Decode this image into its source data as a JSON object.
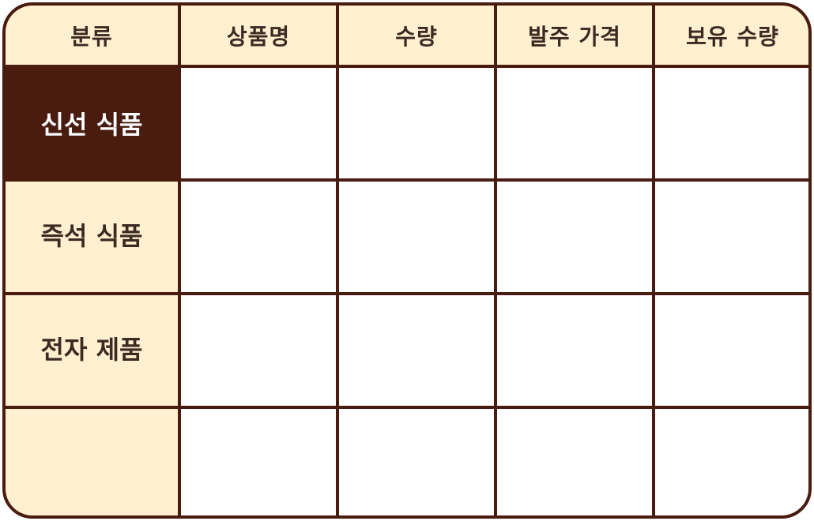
{
  "colors": {
    "border": "#4a1c10",
    "header_bg": "#fff0d0",
    "active_bg": "#4a1c10",
    "cell_bg": "#ffffff",
    "text": "#3a2a22",
    "active_text": "#ffffff"
  },
  "headers": [
    "분류",
    "상품명",
    "수량",
    "발주 가격",
    "보유 수량"
  ],
  "rows": [
    {
      "category": "신선 식품",
      "active": true,
      "cells": [
        "",
        "",
        "",
        ""
      ]
    },
    {
      "category": "즉석 식품",
      "active": false,
      "cells": [
        "",
        "",
        "",
        ""
      ]
    },
    {
      "category": "전자 제품",
      "active": false,
      "cells": [
        "",
        "",
        "",
        ""
      ]
    },
    {
      "category": "",
      "active": false,
      "cells": [
        "",
        "",
        "",
        ""
      ]
    }
  ]
}
